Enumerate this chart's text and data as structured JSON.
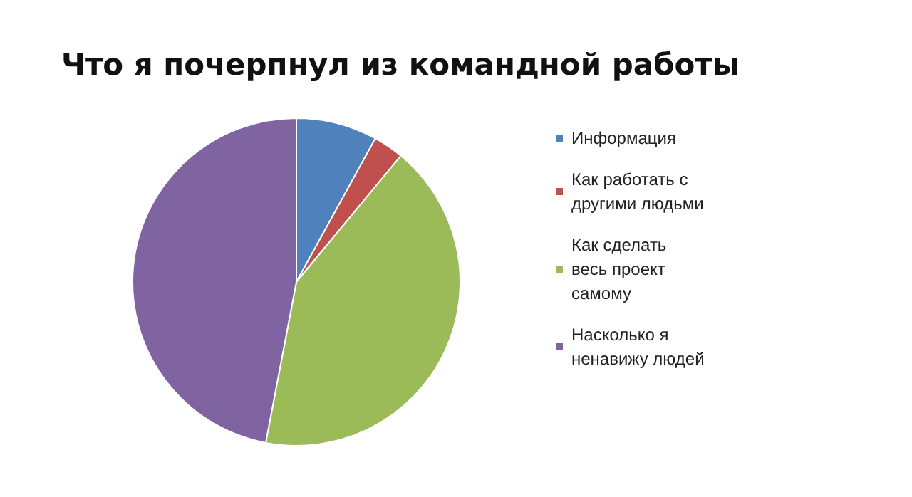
{
  "chart_data": {
    "type": "pie",
    "title": "Что я почерпнул из командной работы",
    "categories": [
      "Информация",
      "Как работать с другими людьми",
      "Как сделать весь проект самому",
      "Насколько я ненавижу людей"
    ],
    "values": [
      8,
      3,
      42,
      47
    ],
    "colors": [
      "#4f81bd",
      "#c0504d",
      "#9bbb59",
      "#8064a2"
    ],
    "legend": "right"
  }
}
